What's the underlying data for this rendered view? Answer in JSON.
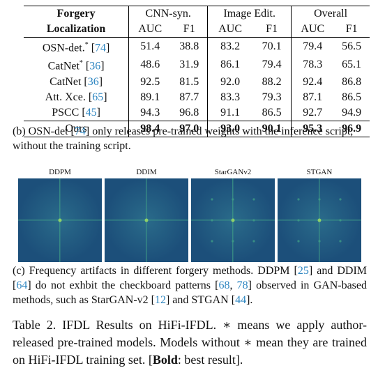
{
  "table": {
    "header_col1_line1": "Forgery",
    "header_col1_line2": "Localization",
    "groups": [
      "CNN-syn.",
      "Image Edit.",
      "Overall"
    ],
    "metrics": [
      "AUC",
      "F1",
      "AUC",
      "F1",
      "AUC",
      "F1"
    ],
    "rows": [
      {
        "name": "OSN-det.",
        "mark": "*",
        "cite": "74",
        "values": [
          "51.4",
          "38.8",
          "83.2",
          "70.1",
          "79.4",
          "56.5"
        ]
      },
      {
        "name": "CatNet",
        "mark": "*",
        "cite": "36",
        "values": [
          "48.6",
          "31.9",
          "86.1",
          "79.4",
          "78.3",
          "65.1"
        ]
      },
      {
        "name": "CatNet",
        "mark": "",
        "cite": "36",
        "values": [
          "92.5",
          "81.5",
          "92.0",
          "88.2",
          "92.4",
          "86.8"
        ]
      },
      {
        "name": "Att. Xce.",
        "mark": "",
        "cite": "65",
        "values": [
          "89.1",
          "87.7",
          "83.3",
          "79.3",
          "87.1",
          "86.5"
        ]
      },
      {
        "name": "PSCC",
        "mark": "",
        "cite": "45",
        "values": [
          "94.3",
          "96.8",
          "91.1",
          "86.5",
          "92.7",
          "94.9"
        ]
      }
    ],
    "ours": {
      "name": "Ours",
      "values": [
        "98.4",
        "97.0",
        "93.0",
        "90.1",
        "95.3",
        "96.9"
      ]
    }
  },
  "caption_b": {
    "prefix": "(b) OSN-det [",
    "cite": "74",
    "suffix": "] only releases pre-trained weights with the inference script, without the training script."
  },
  "figure": {
    "labels": [
      "DDPM",
      "DDIM",
      "StarGANv2",
      "STGAN"
    ],
    "colors": {
      "bg_dark": "#1c4f7a",
      "bg_mid": "#2a6b8a",
      "cross": "#3f9c86",
      "center": "#8fd06a"
    }
  },
  "caption_c": {
    "t1": "(c) Frequency artifacts in different forgery methods. DDPM [",
    "c1": "25",
    "t2": "] and DDIM [",
    "c2": "64",
    "t3": "] do not exhbit the checkboard patterns [",
    "c3": "68",
    "t4": ", ",
    "c4": "78",
    "t5": "] observed in GAN-based methods, such as StarGAN-v2 [",
    "c5": "12",
    "t6": "] and STGAN [",
    "c6": "44",
    "t7": "]."
  },
  "table_caption": {
    "t1": "Table 2. IFDL Results on HiFi-IFDL. ",
    "star1": "∗",
    "t2": " means we apply author-released pre-trained models. Models without ",
    "star2": "∗",
    "t3": " mean they are trained on HiFi-IFDL training set. [",
    "bold": "Bold",
    "t4": ": best result]."
  }
}
